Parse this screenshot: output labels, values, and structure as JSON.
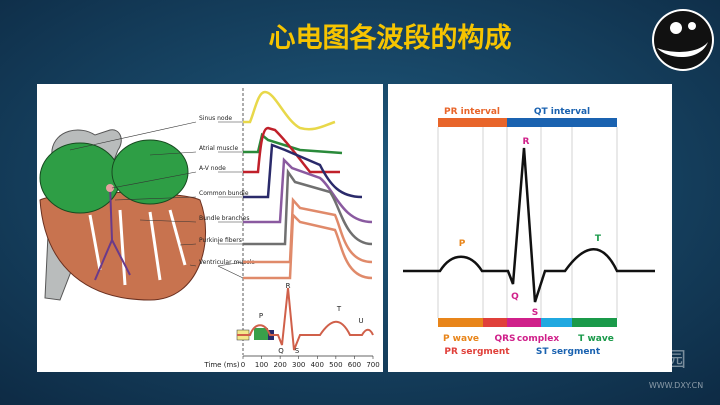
{
  "header": {
    "title": "心电图各波段的构成"
  },
  "left": {
    "labels": [
      "Sinus node",
      "Atrial muscle",
      "A-V node",
      "Common bundle",
      "Bundle branches",
      "Purkinje fibers",
      "Ventricular muscle"
    ],
    "time_axis": {
      "label": "Time (ms)",
      "ticks": [
        0,
        100,
        200,
        300,
        400,
        500,
        600,
        700
      ]
    },
    "waves": [
      "P",
      "R",
      "Q",
      "S",
      "T",
      "U"
    ]
  },
  "right": {
    "intervals": [
      "PR interval",
      "QT interval"
    ],
    "peaks": [
      "R",
      "P",
      "T",
      "Q",
      "S"
    ],
    "segments": [
      "P wave",
      "QRS",
      "complex",
      "T wave",
      "PR sergment",
      "ST sergment"
    ]
  },
  "watermark": {
    "brand": "丁香园",
    "url": "WWW.DXY.CN"
  }
}
